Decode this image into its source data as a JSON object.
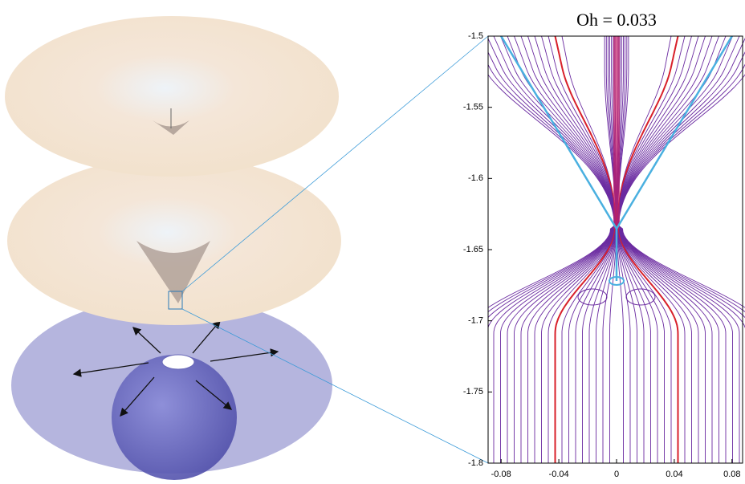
{
  "chart_data": {
    "type": "streamline",
    "title": "Oh = 0.033",
    "xlim": [
      -0.089,
      0.089
    ],
    "ylim": [
      -1.8,
      -1.5
    ],
    "xticks": [
      -0.08,
      -0.04,
      0,
      0.04,
      0.08
    ],
    "yticks": [
      -1.8,
      -1.75,
      -1.7,
      -1.65,
      -1.6,
      -1.55,
      -1.5
    ]
  }
}
